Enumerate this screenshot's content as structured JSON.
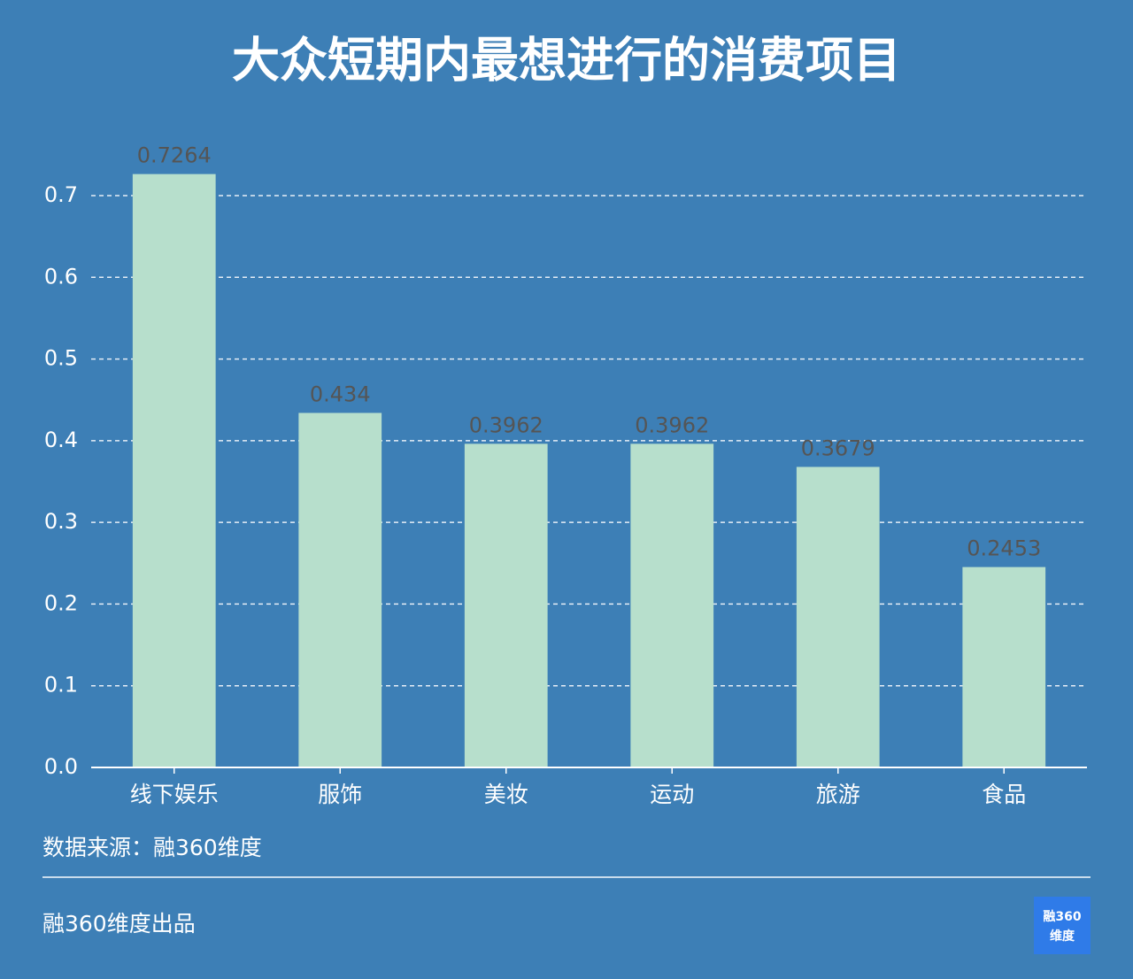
{
  "chart_data": {
    "type": "bar",
    "title": "大众短期内最想进行的消费项目",
    "categories": [
      "线下娱乐",
      "服饰",
      "美妆",
      "运动",
      "旅游",
      "食品"
    ],
    "values": [
      0.7264,
      0.434,
      0.3962,
      0.3962,
      0.3679,
      0.2453
    ],
    "color": "#b7dfcc",
    "ylim": [
      0,
      0.7
    ],
    "yticks": [
      {
        "value": 0,
        "label": "0.0"
      },
      0.1,
      0.2,
      0.3,
      0.4,
      0.5,
      0.6,
      0.7
    ],
    "grid": true
  },
  "source": "数据来源：融360维度",
  "footer": "融360维度出品",
  "logo": [
    "融360",
    "维度"
  ]
}
